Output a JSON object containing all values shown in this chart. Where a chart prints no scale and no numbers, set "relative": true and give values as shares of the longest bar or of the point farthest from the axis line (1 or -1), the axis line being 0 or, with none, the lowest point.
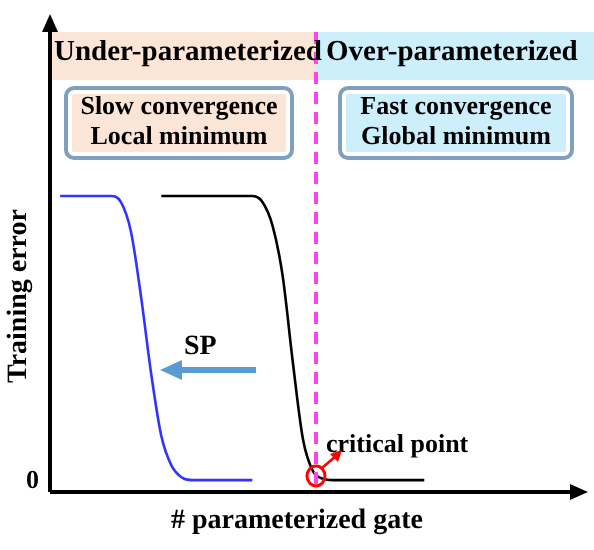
{
  "chart_data": {
    "type": "line",
    "relative": true,
    "xlabel": "# parameterized gate",
    "ylabel": "Training error",
    "categories": [
      null,
      null,
      null,
      null,
      null,
      null,
      null,
      null,
      null,
      null,
      null,
      null,
      null,
      null,
      null,
      null,
      null,
      null,
      null,
      null,
      null,
      null,
      null,
      null,
      null,
      null,
      null,
      null,
      null,
      null,
      null,
      null,
      null,
      null,
      null,
      null,
      null,
      null,
      null,
      null,
      null,
      null,
      null,
      null,
      null,
      null,
      null,
      null,
      null,
      null,
      null,
      null,
      null
    ],
    "series": [
      {
        "color": "#3333ff",
        "values": [
          null,
          1,
          1,
          1,
          1,
          1,
          1,
          0.98,
          0.88,
          0.66,
          0.4,
          0.19,
          0.09,
          0.05,
          0.04,
          0.04,
          0.04,
          0.04,
          0.04,
          0.04,
          0.04,
          null,
          null,
          null,
          null,
          null,
          null,
          null,
          null,
          null,
          null,
          null,
          null,
          null,
          null,
          null,
          null,
          null,
          null,
          null,
          null,
          null,
          null,
          null,
          null,
          null,
          null,
          null,
          null,
          null,
          null,
          null,
          null
        ]
      },
      {
        "color": "#000000",
        "values": [
          null,
          null,
          null,
          null,
          null,
          null,
          null,
          null,
          null,
          null,
          null,
          1,
          1,
          1,
          1,
          1,
          1,
          1,
          1,
          1,
          1,
          0.98,
          0.9,
          0.73,
          0.44,
          0.18,
          0.07,
          0.045,
          0.04,
          0.04,
          0.04,
          0.04,
          0.04,
          0.04,
          0.04,
          0.04,
          0.04,
          0.04,
          null,
          null,
          null,
          null,
          null,
          null,
          null,
          null,
          null,
          null,
          null,
          null,
          null,
          null,
          null
        ]
      }
    ],
    "annotations": [
      "Under-parameterized",
      "Over-parameterized",
      "Slow convergence\nLocal minimum",
      "Fast convergence\nGlobal minimum",
      "SP",
      "critical point",
      "0"
    ],
    "marker": "none",
    "line_style": "solid",
    "legend": false
  }
}
